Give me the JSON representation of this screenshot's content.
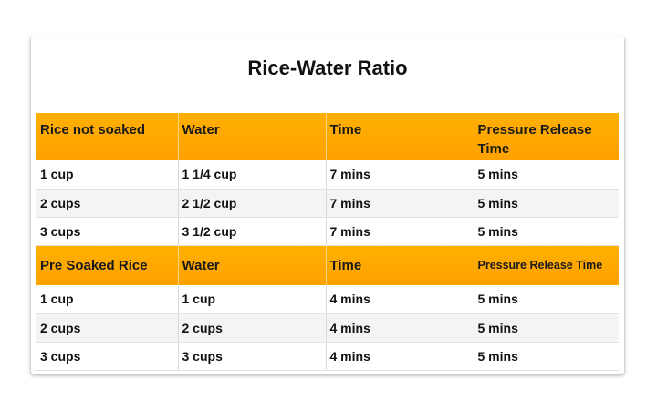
{
  "title": "Rice-Water Ratio",
  "sections": [
    {
      "headers": [
        "Rice not soaked",
        "Water",
        "Time",
        "Pressure Release Time"
      ],
      "rows": [
        [
          "1 cup",
          "1 1/4 cup",
          "7 mins",
          "5 mins"
        ],
        [
          "2 cups",
          "2 1/2 cup",
          "7 mins",
          "5 mins"
        ],
        [
          "3 cups",
          "3 1/2 cup",
          "7 mins",
          "5 mins"
        ]
      ]
    },
    {
      "headers": [
        "Pre Soaked Rice",
        "Water",
        "Time",
        "Pressure Release Time"
      ],
      "rows": [
        [
          "1 cup",
          "1 cup",
          "4 mins",
          "5 mins"
        ],
        [
          "2 cups",
          "2 cups",
          "4 mins",
          "5 mins"
        ],
        [
          "3 cups",
          "3 cups",
          "4 mins",
          "5 mins"
        ]
      ]
    }
  ],
  "colors": {
    "header_background": "#ffa100",
    "alt_row_background": "#f4f4f4",
    "text": "#111111"
  }
}
